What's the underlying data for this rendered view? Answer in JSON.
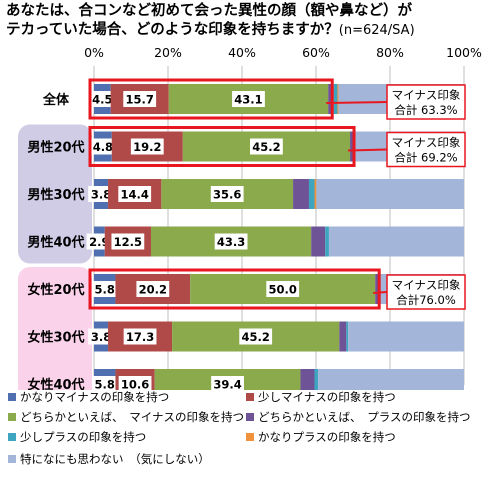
{
  "title": {
    "line1": "あなたは、合コンなど初めて会った異性の顔（額や鼻など）が",
    "line2": "テカっていた場合、どのような印象を持ちますか？",
    "sample": "(n=624/SA)"
  },
  "chart_data": {
    "type": "bar",
    "orientation": "horizontal",
    "stacked": true,
    "categories": [
      "全体",
      "男性20代",
      "男性30代",
      "男性40代",
      "女性20代",
      "女性30代",
      "女性40代"
    ],
    "series": [
      {
        "name": "かなりマイナスの印象を持つ",
        "color": "#4F6FB0",
        "values": [
          4.5,
          4.8,
          3.8,
          2.9,
          5.8,
          3.8,
          5.8
        ]
      },
      {
        "name": "少しマイナスの印象を持つ",
        "color": "#B04A48",
        "values": [
          15.7,
          19.2,
          14.4,
          12.5,
          20.2,
          17.3,
          10.6
        ]
      },
      {
        "name": "どちらかといえば、　マイナスの印象を持つ",
        "color": "#8AAA4C",
        "values": [
          43.1,
          45.2,
          35.6,
          43.3,
          50.0,
          45.2,
          39.4
        ]
      },
      {
        "name": "どちらかといえば、　プラスの印象を持つ",
        "color": "#6E5496",
        "values": [
          1.5,
          1.0,
          4.3,
          3.8,
          1.0,
          1.9,
          3.8
        ]
      },
      {
        "name": "少しプラスの印象を持つ",
        "color": "#3EA5C0",
        "values": [
          1.0,
          0.5,
          1.5,
          1.0,
          0.5,
          0.5,
          1.0
        ]
      },
      {
        "name": "かなりプラスの印象を持つ",
        "color": "#F0923C",
        "values": [
          0.3,
          0.0,
          0.5,
          0.0,
          0.0,
          0.0,
          0.0
        ]
      },
      {
        "name": "特になにも思わない　（気にしない）",
        "color": "#A3B6DA",
        "values": [
          33.9,
          29.3,
          39.9,
          36.5,
          22.5,
          31.3,
          39.4
        ]
      }
    ],
    "labeled_series": [
      0,
      1,
      2
    ],
    "x_ticks": [
      "0%",
      "20%",
      "40%",
      "60%",
      "80%",
      "100%"
    ],
    "xlim": [
      0,
      100
    ],
    "grid": true,
    "highlighted": [
      0,
      1,
      4
    ],
    "callouts": [
      {
        "row": 0,
        "line1": "マイナス印象",
        "line2": "合計 63.3%"
      },
      {
        "row": 1,
        "line1": "マイナス印象",
        "line2": "合計 69.2%"
      },
      {
        "row": 4,
        "line1": "マイナス印象",
        "line2": "合計76.0%"
      }
    ],
    "group_bands": [
      {
        "rows": [
          1,
          2,
          3
        ],
        "color": "#D0CCE6"
      },
      {
        "rows": [
          4,
          5,
          6
        ],
        "color": "#FAD2EA"
      }
    ]
  },
  "colors": {
    "highlight": "#E8171F",
    "grid": "#BFBFBF"
  }
}
